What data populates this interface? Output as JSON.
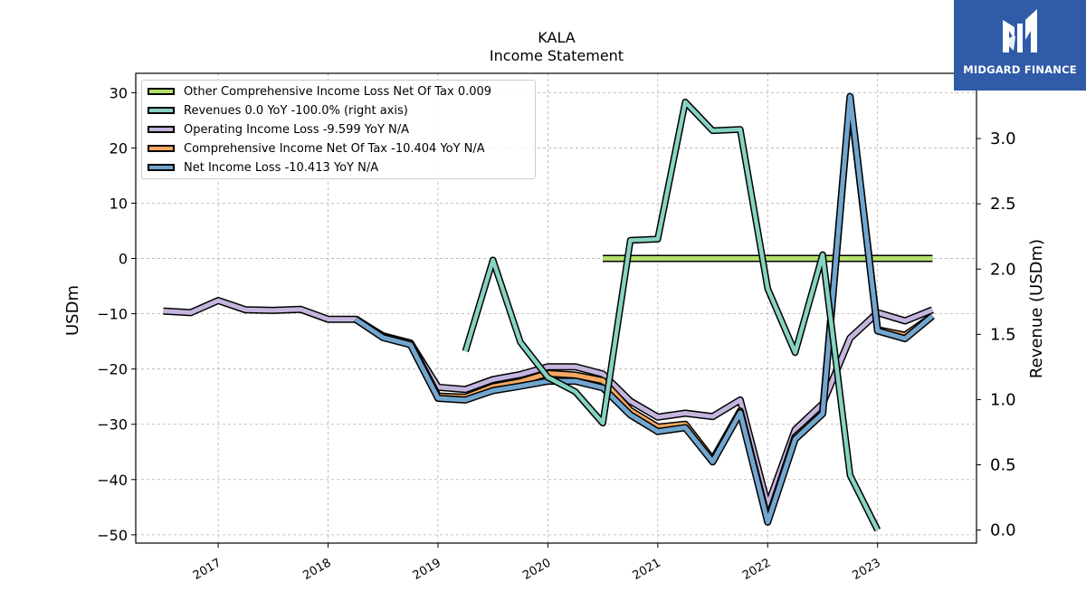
{
  "title": "KALA",
  "subtitle": "Income Statement",
  "logo": {
    "text": "MIDGARD FINANCE",
    "icon": "midgard-logo-icon",
    "bg_color": "#2f5ba8"
  },
  "chart_data": {
    "type": "line",
    "ylabel": "USDm",
    "y2label": "Revenue (USDm)",
    "ylim": [
      -51.5,
      33.5
    ],
    "y2lim": [
      -0.1,
      3.5
    ],
    "xlim": [
      2016.25,
      2023.9
    ],
    "yticks": [
      "30",
      "20",
      "10",
      "0",
      "−10",
      "−20",
      "−30",
      "−40",
      "−50"
    ],
    "y2ticks": [
      "3.0",
      "2.5",
      "2.0",
      "1.5",
      "1.0",
      "0.5",
      "0.0"
    ],
    "xticks": [
      "2017",
      "2018",
      "2019",
      "2020",
      "2021",
      "2022",
      "2023"
    ],
    "grid": true,
    "legend_position": "upper-left",
    "series": [
      {
        "name": "Other Comprehensive Income Loss Net Of Tax  0.009",
        "color": "#b5e06c",
        "axis": "left",
        "x": [
          2020.5,
          2023.5
        ],
        "values": [
          0.009,
          0.009
        ]
      },
      {
        "name": "Revenues  0.0 YoY -100.0% (right axis)",
        "color": "#86d3c2",
        "axis": "right",
        "x": [
          2019.25,
          2019.5,
          2019.75,
          2020.0,
          2020.25,
          2020.5,
          2020.75,
          2021.0,
          2021.25,
          2021.5,
          2021.75,
          2022.0,
          2022.25,
          2022.5,
          2022.75,
          2023.0
        ],
        "values": [
          1.37,
          2.07,
          1.44,
          1.17,
          1.06,
          0.82,
          2.22,
          2.23,
          3.28,
          3.06,
          3.07,
          1.85,
          1.36,
          2.11,
          0.42,
          0.0
        ]
      },
      {
        "name": "Operating Income Loss  -9.599 YoY N/A",
        "color": "#c4b5de",
        "axis": "left",
        "x": [
          2016.5,
          2016.75,
          2017.0,
          2017.25,
          2017.5,
          2017.75,
          2018.0,
          2018.25,
          2018.5,
          2018.75,
          2019.0,
          2019.25,
          2019.5,
          2019.75,
          2020.0,
          2020.25,
          2020.5,
          2020.75,
          2021.0,
          2021.25,
          2021.5,
          2021.75,
          2022.0,
          2022.25,
          2022.5,
          2022.75,
          2023.0,
          2023.25,
          2023.5
        ],
        "values": [
          -9.5,
          -9.8,
          -7.6,
          -9.3,
          -9.4,
          -9.2,
          -11.0,
          -11.0,
          -14.0,
          -15.3,
          -23.3,
          -23.7,
          -21.9,
          -21.0,
          -19.6,
          -19.6,
          -20.9,
          -25.8,
          -28.7,
          -28.0,
          -28.6,
          -25.6,
          -44.7,
          -31.0,
          -26.3,
          -14.4,
          -9.8,
          -11.3,
          -9.3
        ]
      },
      {
        "name": "Comprehensive Income Net Of Tax  -10.404 YoY N/A",
        "color": "#f4a862",
        "axis": "left",
        "x": [
          2018.25,
          2018.5,
          2018.75,
          2019.0,
          2019.25,
          2019.5,
          2019.75,
          2020.0,
          2020.25,
          2020.5,
          2020.75,
          2021.0,
          2021.25,
          2021.5,
          2021.75,
          2022.0,
          2022.25,
          2022.5,
          2022.75,
          2023.0,
          2023.25,
          2023.5
        ],
        "values": [
          -10.9,
          -14.1,
          -15.3,
          -24.9,
          -25.1,
          -23.2,
          -22.3,
          -20.8,
          -21.1,
          -22.1,
          -27.5,
          -30.5,
          -30.0,
          -36.4,
          -27.6,
          -47.3,
          -32.3,
          -27.8,
          29.0,
          -12.9,
          -13.9,
          -10.4
        ]
      },
      {
        "name": "Net Income Loss  -10.413 YoY N/A",
        "color": "#72a6cf",
        "axis": "left",
        "x": [
          2018.25,
          2018.5,
          2018.75,
          2019.0,
          2019.25,
          2019.5,
          2019.75,
          2020.0,
          2020.25,
          2020.5,
          2020.75,
          2021.0,
          2021.25,
          2021.5,
          2021.75,
          2022.0,
          2022.25,
          2022.5,
          2022.75,
          2023.0,
          2023.25,
          2023.5
        ],
        "values": [
          -11.0,
          -14.3,
          -15.6,
          -25.3,
          -25.6,
          -23.9,
          -23.1,
          -22.2,
          -22.2,
          -23.4,
          -28.3,
          -31.3,
          -30.6,
          -36.8,
          -27.9,
          -47.7,
          -32.7,
          -28.1,
          29.3,
          -13.1,
          -14.5,
          -10.4
        ]
      }
    ]
  }
}
